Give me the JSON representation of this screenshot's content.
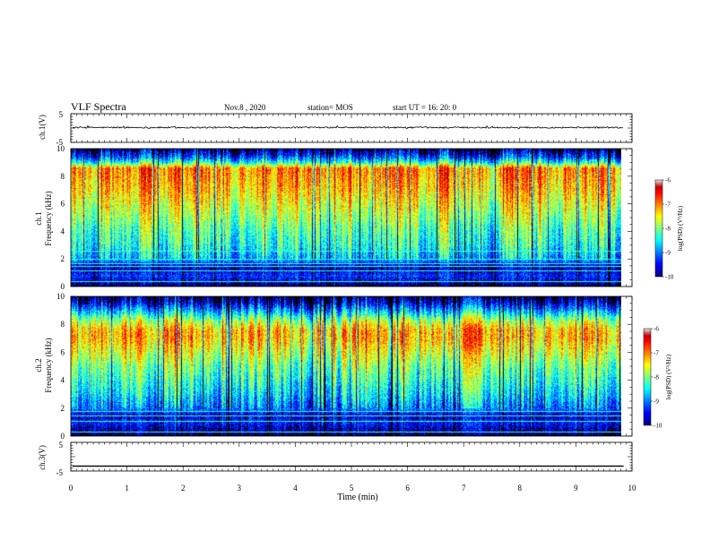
{
  "header": {
    "title": "VLF Spectra",
    "date": "Nov.8  , 2020",
    "station": "station= MOS",
    "start": "start  UT =   16: 20: 0"
  },
  "chart_data": [
    {
      "type": "line",
      "panel": "ch1-waveform",
      "ylabel": "ch.1(V)",
      "yticks": [
        "5",
        "-5"
      ],
      "ylim": [
        -5,
        5
      ],
      "xlim": [
        0,
        10
      ],
      "baseline": 0,
      "noise": "low",
      "visual": {
        "line_color": "#000000"
      }
    },
    {
      "type": "heatmap",
      "panel": "ch1-spectrogram",
      "ylabel_line1": "ch.1",
      "ylabel_line2": "Frequency (kHz)",
      "yticks": [
        "0",
        "2",
        "4",
        "6",
        "8",
        "10"
      ],
      "ylim": [
        0,
        10
      ],
      "xlim": [
        0,
        9.85
      ],
      "freq_profile_log_psd": [
        [
          0.0,
          -10
        ],
        [
          0.3,
          -9.7
        ],
        [
          0.8,
          -9.3
        ],
        [
          1.2,
          -9.6
        ],
        [
          1.6,
          -9.5
        ],
        [
          2.0,
          -8.8
        ],
        [
          3.0,
          -8.4
        ],
        [
          4.0,
          -8.2
        ],
        [
          5.0,
          -7.9
        ],
        [
          6.0,
          -7.6
        ],
        [
          7.0,
          -7.3
        ],
        [
          8.0,
          -7.1
        ],
        [
          8.6,
          -7.0
        ],
        [
          9.0,
          -8.3
        ],
        [
          9.4,
          -9.2
        ],
        [
          10.0,
          -9.9
        ]
      ],
      "colorbar": {
        "label": "log(PSD) (V²/Hz)",
        "ticks": [
          "-6",
          "-7",
          "-8",
          "-9",
          "-10"
        ],
        "range": [
          -10,
          -6
        ]
      },
      "visual": {
        "colormap": "jet"
      }
    },
    {
      "type": "heatmap",
      "panel": "ch2-spectrogram",
      "ylabel_line1": "ch.2",
      "ylabel_line2": "Frequency (kHz)",
      "yticks": [
        "0",
        "2",
        "4",
        "6",
        "8",
        "10"
      ],
      "ylim": [
        0,
        10
      ],
      "xlim": [
        0,
        9.85
      ],
      "freq_profile_log_psd": [
        [
          0.0,
          -10
        ],
        [
          0.4,
          -9.7
        ],
        [
          1.0,
          -9.4
        ],
        [
          1.5,
          -9.6
        ],
        [
          2.0,
          -9.0
        ],
        [
          3.0,
          -8.6
        ],
        [
          4.0,
          -8.3
        ],
        [
          5.0,
          -8.0
        ],
        [
          6.0,
          -7.6
        ],
        [
          7.0,
          -7.2
        ],
        [
          7.6,
          -7.2
        ],
        [
          8.3,
          -7.8
        ],
        [
          9.0,
          -8.8
        ],
        [
          9.6,
          -9.6
        ],
        [
          10.0,
          -9.9
        ]
      ],
      "colorbar": {
        "label": "log(PSD) (V²/Hz)",
        "ticks": [
          "-6",
          "-7",
          "-8",
          "-9",
          "-10"
        ],
        "range": [
          -10,
          -6
        ]
      },
      "visual": {
        "colormap": "jet"
      }
    },
    {
      "type": "line",
      "panel": "ch3-waveform",
      "ylabel": "ch.3(V)",
      "yticks": [
        "5",
        "-5"
      ],
      "ylim": [
        -5,
        5
      ],
      "xlim": [
        0,
        10
      ],
      "baseline": -3.3,
      "noise": "none",
      "xlabel": "Time  (min)",
      "xticks": [
        "0",
        "1",
        "2",
        "3",
        "4",
        "5",
        "6",
        "7",
        "8",
        "9",
        "10"
      ],
      "visual": {
        "line_color": "#000000"
      }
    }
  ]
}
